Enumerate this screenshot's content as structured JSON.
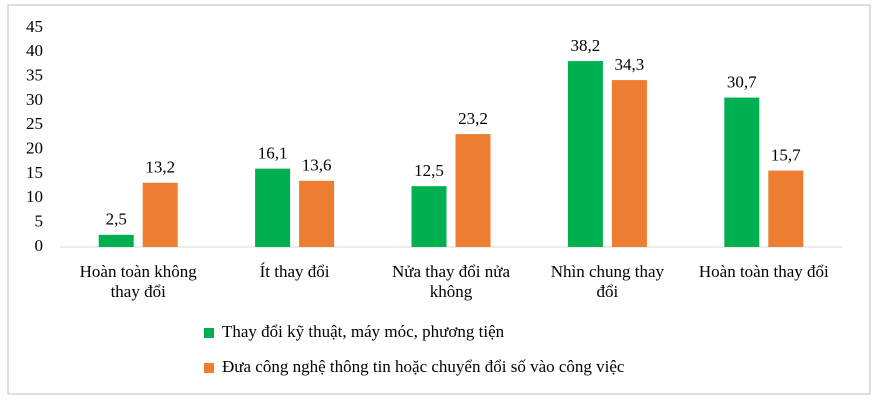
{
  "chart_data": {
    "type": "bar",
    "categories": [
      "Hoàn toàn không thay đổi",
      "Ít thay đổi",
      "Nửa thay đổi nửa không",
      "Nhìn chung thay đổi",
      "Hoàn toàn thay đổi"
    ],
    "series": [
      {
        "name": "Thay đổi kỹ thuật, máy móc, phương tiện",
        "color": "#00b050",
        "values": [
          2.5,
          16.1,
          12.5,
          38.2,
          30.7
        ],
        "value_labels": [
          "2,5",
          "16,1",
          "12,5",
          "38,2",
          "30,7"
        ]
      },
      {
        "name": "Đưa công nghệ thông tin hoặc chuyển đổi số vào công việc",
        "color": "#ed7d31",
        "values": [
          13.2,
          13.6,
          23.2,
          34.3,
          15.7
        ],
        "value_labels": [
          "13,2",
          "13,6",
          "23,2",
          "34,3",
          "15,7"
        ]
      }
    ],
    "ylim": [
      0,
      45
    ],
    "yticks": [
      0,
      5,
      10,
      15,
      20,
      25,
      30,
      35,
      40,
      45
    ],
    "grid": false,
    "legend": "bottom"
  }
}
